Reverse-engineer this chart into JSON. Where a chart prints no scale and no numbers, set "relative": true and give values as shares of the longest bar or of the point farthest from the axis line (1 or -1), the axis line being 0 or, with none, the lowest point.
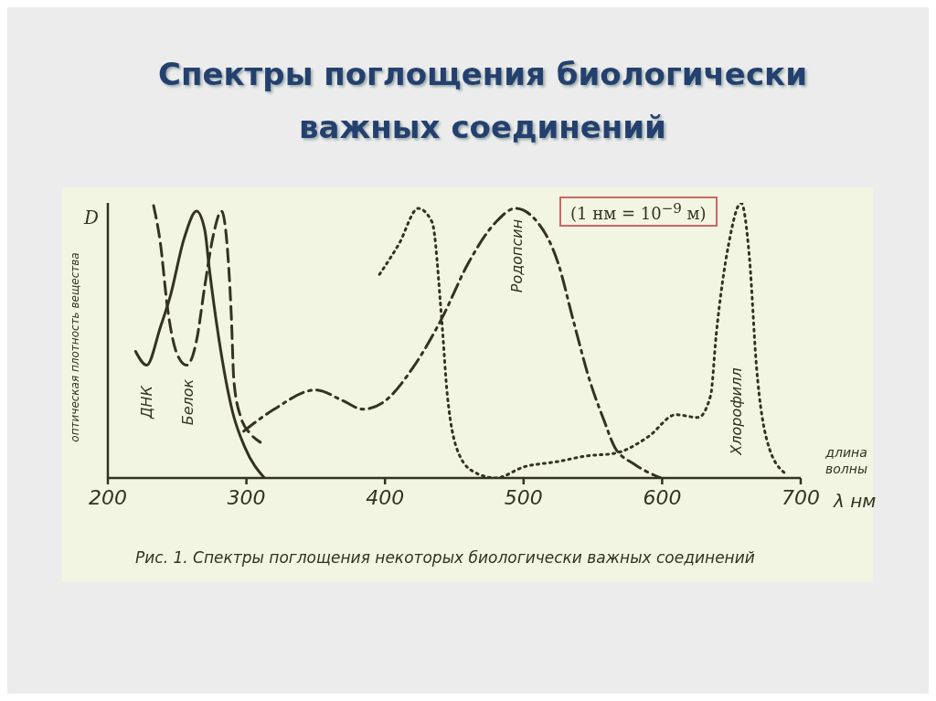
{
  "chart_data": {
    "type": "line",
    "title": "Спектры поглощения биологически важных соединений",
    "ylabel": "оптическая плотность вещества",
    "xlabel": "длина волны",
    "annotations": [
      "D",
      "λ нм",
      "(1 нм = 10$^{−9}$ м)",
      "Рис. 1. Спектры поглощения некоторых биологически важных соединений"
    ],
    "relative": true,
    "xlim": [
      200,
      700
    ],
    "xticks": [
      200,
      300,
      400,
      500,
      600,
      700
    ],
    "grid": false,
    "legend": false,
    "marker": "none",
    "series": [
      {
        "name": "ДНК",
        "color": "#33331f",
        "line_style": "solid",
        "x": [
          220,
          228,
          238,
          245,
          255,
          264,
          270,
          273,
          280,
          290,
          299,
          313
        ],
        "values": [
          0.46,
          0.41,
          0.55,
          0.66,
          0.87,
          0.97,
          0.9,
          0.77,
          0.51,
          0.24,
          0.11,
          0
        ]
      },
      {
        "name": "Белок",
        "color": "#33331f",
        "line_style": "dashed",
        "x": [
          233,
          238,
          243,
          250,
          257,
          264,
          270,
          276,
          282,
          286,
          289,
          291,
          296,
          303,
          310
        ],
        "values": [
          0.99,
          0.85,
          0.62,
          0.45,
          0.41,
          0.5,
          0.7,
          0.88,
          0.97,
          0.85,
          0.6,
          0.35,
          0.22,
          0.16,
          0.13
        ]
      },
      {
        "name": "Родопсин",
        "color": "#33331f",
        "line_style": "dashdot",
        "x": [
          298,
          320,
          350,
          370,
          384,
          400,
          420,
          441,
          460,
          480,
          494,
          510,
          525,
          536,
          548,
          558,
          566,
          580,
          599
        ],
        "values": [
          0.17,
          0.25,
          0.32,
          0.28,
          0.25,
          0.28,
          0.4,
          0.58,
          0.78,
          0.93,
          0.98,
          0.93,
          0.78,
          0.57,
          0.35,
          0.21,
          0.11,
          0.05,
          0
        ]
      },
      {
        "name": "Хлорофилл",
        "color": "#33331f",
        "line_style": "dotted",
        "x": [
          396,
          410,
          424,
          434,
          441,
          445,
          454,
          465,
          480,
          500,
          525,
          545,
          566,
          590,
          610,
          626,
          635,
          639,
          648,
          657,
          663,
          668,
          676,
          688
        ],
        "values": [
          0.74,
          0.85,
          0.98,
          0.93,
          0.57,
          0.3,
          0.08,
          0.02,
          0,
          0.04,
          0.06,
          0.08,
          0.09,
          0.15,
          0.23,
          0.22,
          0.3,
          0.52,
          0.85,
          1,
          0.8,
          0.41,
          0.13,
          0.02
        ]
      }
    ]
  }
}
